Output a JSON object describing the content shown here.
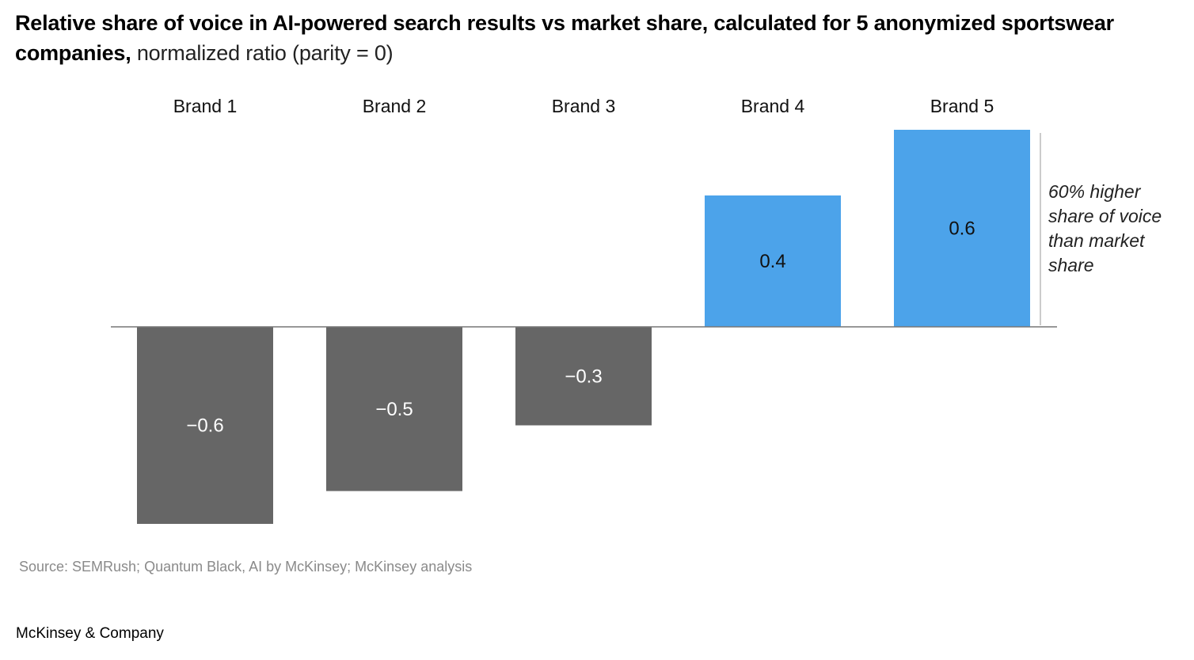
{
  "header": {
    "title_bold": "Relative share of voice in AI-powered search results vs market share, calculated for 5 anonymized sportswear companies,",
    "title_light": " normalized ratio (parity = 0)"
  },
  "chart_data": {
    "type": "bar",
    "title": "Relative share of voice in AI-powered search results vs market share, calculated for 5 anonymized sportswear companies, normalized ratio (parity = 0)",
    "xlabel": "",
    "ylabel": "",
    "categories": [
      "Brand 1",
      "Brand 2",
      "Brand 3",
      "Brand 4",
      "Brand 5"
    ],
    "values": [
      -0.6,
      -0.5,
      -0.3,
      0.4,
      0.6
    ],
    "value_labels": [
      "−0.6",
      "−0.5",
      "−0.3",
      "0.4",
      "0.6"
    ],
    "ylim": [
      -0.6,
      0.6
    ],
    "baseline": 0,
    "grid": false,
    "axis_ticks_shown": false,
    "category_label_position": "top",
    "colors": {
      "negative": "#666666",
      "positive": "#4ca3ea"
    },
    "label_colors": {
      "negative": "#ffffff",
      "positive": "#111111"
    },
    "annotation": {
      "target": "Brand 5",
      "lines": [
        "60% higher",
        "share of voice",
        "than market",
        "share"
      ]
    }
  },
  "footer": {
    "source": "Source: SEMRush; Quantum Black, AI by McKinsey; McKinsey analysis",
    "brand": "McKinsey & Company"
  }
}
